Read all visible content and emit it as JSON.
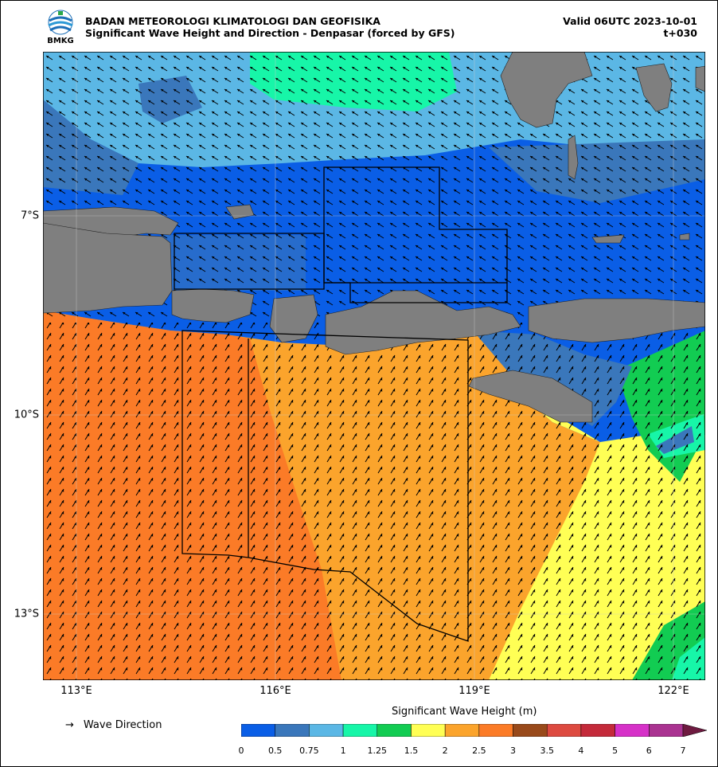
{
  "header": {
    "agency": "BADAN METEOROLOGI KLIMATOLOGI DAN GEOFISIKA",
    "product": "Significant Wave Height and Direction - Denpasar (forced by GFS)",
    "valid": "Valid 06UTC 2023-10-01",
    "lead": "t+030",
    "logo_text": "BMKG"
  },
  "axes": {
    "x_ticks": [
      "113°E",
      "116°E",
      "119°E",
      "122°E"
    ],
    "y_ticks": [
      "7°S",
      "10°S",
      "13°S"
    ]
  },
  "legend": {
    "direction_symbol": "→",
    "direction_label": "Wave Direction",
    "colorbar_title": "Significant Wave Height (m)",
    "levels": [
      "0",
      "0.5",
      "0.75",
      "1",
      "1.25",
      "1.5",
      "2",
      "2.5",
      "3",
      "3.5",
      "4",
      "5",
      "6",
      "7"
    ],
    "colors": [
      "#0a5ee6",
      "#3a77bb",
      "#5bb7e5",
      "#17f6a8",
      "#12cc52",
      "#ffff55",
      "#fba42c",
      "#fb7b27",
      "#994a1b",
      "#dd4a40",
      "#c42a3a",
      "#d631c8",
      "#aa3391",
      "#6e1a40"
    ]
  },
  "map": {
    "land_color": "#7f7f7f",
    "grid_color": "#cccccc",
    "boundary_color": "#000000"
  }
}
